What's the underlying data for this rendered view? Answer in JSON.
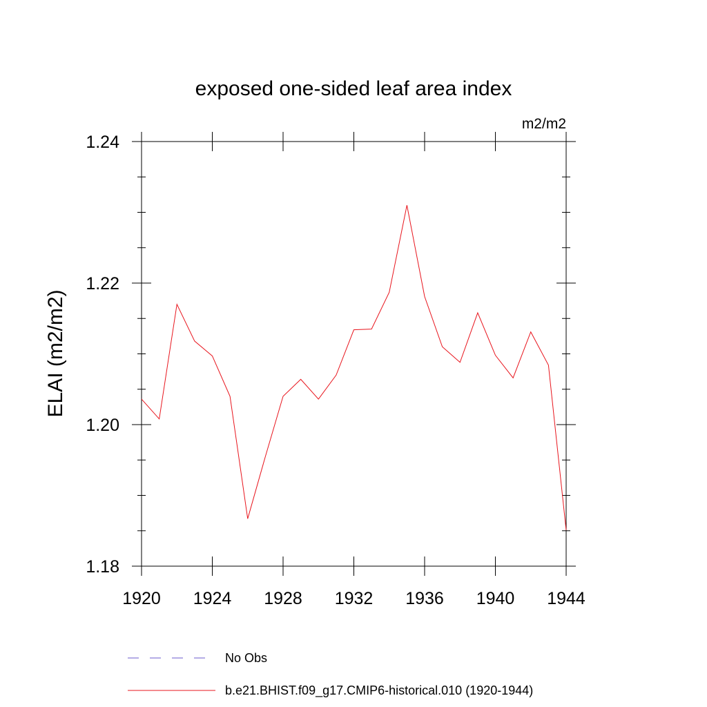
{
  "chart_data": {
    "type": "line",
    "title": "exposed one-sided leaf area index",
    "units": "m2/m2",
    "ylabel": "ELAI  (m2/m2)",
    "xlabel": "",
    "xlim": [
      1920,
      1944
    ],
    "ylim": [
      1.18,
      1.24
    ],
    "x_ticks": [
      1920,
      1924,
      1928,
      1932,
      1936,
      1940,
      1944
    ],
    "x_tick_labels": [
      "1920",
      "1924",
      "1928",
      "1932",
      "1936",
      "1940",
      "1944"
    ],
    "y_ticks": [
      1.18,
      1.2,
      1.22,
      1.24
    ],
    "y_tick_labels": [
      "1.18",
      "1.20",
      "1.22",
      "1.24"
    ],
    "grid": false,
    "legend_position": "bottom",
    "series": [
      {
        "name": "No Obs",
        "color": "#6a5acd",
        "dash": "dashed",
        "x": [],
        "values": []
      },
      {
        "name": "b.e21.BHIST.f09_g17.CMIP6-historical.010 (1920-1944)",
        "color": "#e8141c",
        "dash": "solid",
        "x": [
          1920,
          1921,
          1922,
          1923,
          1924,
          1925,
          1926,
          1927,
          1928,
          1929,
          1930,
          1931,
          1932,
          1933,
          1934,
          1935,
          1936,
          1937,
          1938,
          1939,
          1940,
          1941,
          1942,
          1943,
          1944
        ],
        "values": [
          1.2036,
          1.2008,
          1.217,
          1.2118,
          1.2097,
          1.204,
          1.1867,
          1.1955,
          1.204,
          1.2064,
          1.2036,
          1.207,
          1.2134,
          1.2135,
          1.2187,
          1.231,
          1.2181,
          1.211,
          1.2088,
          1.2158,
          1.2098,
          1.2066,
          1.2131,
          1.2084,
          1.1851
        ]
      }
    ]
  }
}
